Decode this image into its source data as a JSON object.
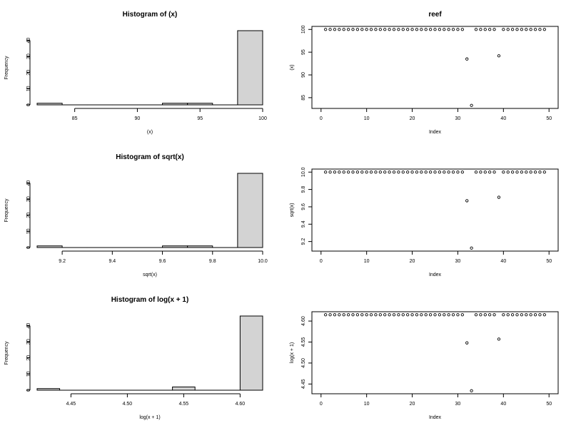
{
  "chart_data": [
    {
      "type": "bar",
      "subtype": "histogram",
      "title": "Histogram of (x)",
      "xlabel": "(x)",
      "ylabel": "Frequency",
      "bins": [
        [
          82,
          84
        ],
        [
          84,
          86
        ],
        [
          86,
          88
        ],
        [
          88,
          90
        ],
        [
          90,
          92
        ],
        [
          92,
          94
        ],
        [
          94,
          96
        ],
        [
          96,
          98
        ],
        [
          98,
          100
        ]
      ],
      "values": [
        1,
        0,
        0,
        0,
        0,
        1,
        1,
        0,
        46
      ],
      "xlim": [
        82,
        100
      ],
      "ylim": [
        0,
        46
      ],
      "xticks": [
        85,
        90,
        95,
        100
      ],
      "yticks": [
        0,
        10,
        20,
        30,
        40
      ],
      "xticklabels": [
        "85",
        "90",
        "95",
        "100"
      ],
      "yticklabels": [
        "0",
        "10",
        "20",
        "30",
        "40"
      ],
      "bar_color": "#d3d3d3"
    },
    {
      "type": "scatter",
      "title": "reef",
      "xlabel": "Index",
      "ylabel": "(x)",
      "x": [
        1,
        2,
        3,
        4,
        5,
        6,
        7,
        8,
        9,
        10,
        11,
        12,
        13,
        14,
        15,
        16,
        17,
        18,
        19,
        20,
        21,
        22,
        23,
        24,
        25,
        26,
        27,
        28,
        29,
        30,
        31,
        32,
        33,
        34,
        35,
        36,
        37,
        38,
        39,
        40,
        41,
        42,
        43,
        44,
        45,
        46,
        47,
        48,
        49
      ],
      "y": [
        100,
        100,
        100,
        100,
        100,
        100,
        100,
        100,
        100,
        100,
        100,
        100,
        100,
        100,
        100,
        100,
        100,
        100,
        100,
        100,
        100,
        100,
        100,
        100,
        100,
        100,
        100,
        100,
        100,
        100,
        100,
        93.5,
        83.3,
        100,
        100,
        100,
        100,
        100,
        94.2,
        100,
        100,
        100,
        100,
        100,
        100,
        100,
        100,
        100,
        100
      ],
      "xlim": [
        0,
        50
      ],
      "ylim": [
        83.3,
        100
      ],
      "xticks": [
        0,
        10,
        20,
        30,
        40,
        50
      ],
      "yticks": [
        85,
        90,
        95,
        100
      ],
      "xticklabels": [
        "0",
        "10",
        "20",
        "30",
        "40",
        "50"
      ],
      "yticklabels": [
        "85",
        "90",
        "95",
        "100"
      ]
    },
    {
      "type": "bar",
      "subtype": "histogram",
      "title": "Histogram of sqrt(x)",
      "xlabel": "sqrt(x)",
      "ylabel": "Frequency",
      "bins": [
        [
          9.1,
          9.2
        ],
        [
          9.2,
          9.3
        ],
        [
          9.3,
          9.4
        ],
        [
          9.4,
          9.5
        ],
        [
          9.5,
          9.6
        ],
        [
          9.6,
          9.7
        ],
        [
          9.7,
          9.8
        ],
        [
          9.8,
          9.9
        ],
        [
          9.9,
          10.0
        ]
      ],
      "values": [
        1,
        0,
        0,
        0,
        0,
        1,
        1,
        0,
        46
      ],
      "xlim": [
        9.1,
        10.0
      ],
      "ylim": [
        0,
        46
      ],
      "xticks": [
        9.2,
        9.4,
        9.6,
        9.8,
        10.0
      ],
      "yticks": [
        0,
        10,
        20,
        30,
        40
      ],
      "xticklabels": [
        "9.2",
        "9.4",
        "9.6",
        "9.8",
        "10.0"
      ],
      "yticklabels": [
        "0",
        "10",
        "20",
        "30",
        "40"
      ],
      "bar_color": "#d3d3d3"
    },
    {
      "type": "scatter",
      "title": "",
      "xlabel": "Index",
      "ylabel": "sqrt(x)",
      "x": [
        1,
        2,
        3,
        4,
        5,
        6,
        7,
        8,
        9,
        10,
        11,
        12,
        13,
        14,
        15,
        16,
        17,
        18,
        19,
        20,
        21,
        22,
        23,
        24,
        25,
        26,
        27,
        28,
        29,
        30,
        31,
        32,
        33,
        34,
        35,
        36,
        37,
        38,
        39,
        40,
        41,
        42,
        43,
        44,
        45,
        46,
        47,
        48,
        49
      ],
      "y": [
        10,
        10,
        10,
        10,
        10,
        10,
        10,
        10,
        10,
        10,
        10,
        10,
        10,
        10,
        10,
        10,
        10,
        10,
        10,
        10,
        10,
        10,
        10,
        10,
        10,
        10,
        10,
        10,
        10,
        10,
        10,
        9.67,
        9.125,
        10,
        10,
        10,
        10,
        10,
        9.71,
        10,
        10,
        10,
        10,
        10,
        10,
        10,
        10,
        10,
        10
      ],
      "xlim": [
        0,
        50
      ],
      "ylim": [
        9.125,
        10.0
      ],
      "xticks": [
        0,
        10,
        20,
        30,
        40,
        50
      ],
      "yticks": [
        9.2,
        9.4,
        9.6,
        9.8,
        10.0
      ],
      "xticklabels": [
        "0",
        "10",
        "20",
        "30",
        "40",
        "50"
      ],
      "yticklabels": [
        "9.2",
        "9.4",
        "9.6",
        "9.8",
        "10.0"
      ]
    },
    {
      "type": "bar",
      "subtype": "histogram",
      "title": "Histogram of log(x + 1)",
      "xlabel": "log(x + 1)",
      "ylabel": "Frequency",
      "bins": [
        [
          4.42,
          4.44
        ],
        [
          4.44,
          4.46
        ],
        [
          4.46,
          4.48
        ],
        [
          4.48,
          4.5
        ],
        [
          4.5,
          4.52
        ],
        [
          4.52,
          4.54
        ],
        [
          4.54,
          4.56
        ],
        [
          4.56,
          4.58
        ],
        [
          4.58,
          4.6
        ],
        [
          4.6,
          4.62
        ]
      ],
      "values": [
        1,
        0,
        0,
        0,
        0,
        0,
        2,
        0,
        0,
        46
      ],
      "xlim": [
        4.42,
        4.62
      ],
      "ylim": [
        0,
        46
      ],
      "xticks": [
        4.45,
        4.5,
        4.55,
        4.6
      ],
      "yticks": [
        0,
        10,
        20,
        30,
        40
      ],
      "xticklabels": [
        "4.45",
        "4.50",
        "4.55",
        "4.60"
      ],
      "yticklabels": [
        "0",
        "10",
        "20",
        "30",
        "40"
      ],
      "bar_color": "#d3d3d3"
    },
    {
      "type": "scatter",
      "title": "",
      "xlabel": "Index",
      "ylabel": "log(x + 1)",
      "x": [
        1,
        2,
        3,
        4,
        5,
        6,
        7,
        8,
        9,
        10,
        11,
        12,
        13,
        14,
        15,
        16,
        17,
        18,
        19,
        20,
        21,
        22,
        23,
        24,
        25,
        26,
        27,
        28,
        29,
        30,
        31,
        32,
        33,
        34,
        35,
        36,
        37,
        38,
        39,
        40,
        41,
        42,
        43,
        44,
        45,
        46,
        47,
        48,
        49
      ],
      "y": [
        4.615,
        4.615,
        4.615,
        4.615,
        4.615,
        4.615,
        4.615,
        4.615,
        4.615,
        4.615,
        4.615,
        4.615,
        4.615,
        4.615,
        4.615,
        4.615,
        4.615,
        4.615,
        4.615,
        4.615,
        4.615,
        4.615,
        4.615,
        4.615,
        4.615,
        4.615,
        4.615,
        4.615,
        4.615,
        4.615,
        4.615,
        4.548,
        4.434,
        4.615,
        4.615,
        4.615,
        4.615,
        4.615,
        4.557,
        4.615,
        4.615,
        4.615,
        4.615,
        4.615,
        4.615,
        4.615,
        4.615,
        4.615,
        4.615
      ],
      "xlim": [
        0,
        50
      ],
      "ylim": [
        4.434,
        4.615
      ],
      "xticks": [
        0,
        10,
        20,
        30,
        40,
        50
      ],
      "yticks": [
        4.45,
        4.5,
        4.55,
        4.6
      ],
      "xticklabels": [
        "0",
        "10",
        "20",
        "30",
        "40",
        "50"
      ],
      "yticklabels": [
        "4.45",
        "4.50",
        "4.55",
        "4.60"
      ]
    }
  ]
}
